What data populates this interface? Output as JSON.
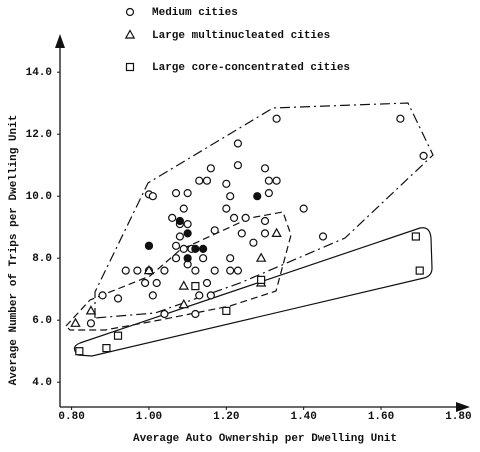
{
  "chart_data": {
    "type": "scatter",
    "x_label": "Average Auto Ownership per Dwelling Unit",
    "y_label": "Average Number of Trips per Dwelling Unit",
    "xlim": [
      0.77,
      1.83
    ],
    "ylim": [
      3.2,
      15.2
    ],
    "xticks": [
      {
        "value": 0.8,
        "label": "0.80"
      },
      {
        "value": 1.0,
        "label": "1.00"
      },
      {
        "value": 1.2,
        "label": "1.20"
      },
      {
        "value": 1.4,
        "label": "1.40"
      },
      {
        "value": 1.6,
        "label": "1.60"
      },
      {
        "value": 1.8,
        "label": "1.80"
      }
    ],
    "yticks": [
      {
        "value": 4,
        "label": "4.0"
      },
      {
        "value": 6,
        "label": "6.0"
      },
      {
        "value": 8,
        "label": "8.0"
      },
      {
        "value": 10,
        "label": "10.0"
      },
      {
        "value": 12,
        "label": "12.0"
      },
      {
        "value": 14,
        "label": "14.0"
      }
    ],
    "series": [
      {
        "name": "Medium cities",
        "marker": "circle",
        "color": "#111111",
        "x": [
          1.0,
          1.0,
          0.97,
          1.0,
          1.04,
          0.99,
          1.01,
          1.02,
          1.04,
          0.94,
          0.88,
          0.85,
          1.08,
          1.07,
          1.07,
          1.08,
          1.06,
          1.01,
          1.07,
          1.1,
          1.09,
          1.1,
          1.09,
          1.11,
          1.1,
          1.12,
          1.14,
          1.17,
          1.15,
          1.13,
          1.12,
          1.13,
          1.16,
          1.15,
          1.17,
          1.2,
          1.2,
          1.21,
          1.23,
          1.23,
          1.22,
          1.25,
          1.24,
          1.21,
          1.21,
          1.23,
          1.27,
          1.3,
          1.31,
          1.31,
          1.33,
          1.3,
          1.3,
          1.4,
          1.45,
          1.33,
          1.65,
          1.71,
          0.92,
          1.16
        ],
        "y": [
          10.06,
          8.4,
          7.6,
          7.6,
          7.6,
          7.2,
          6.8,
          7.2,
          6.2,
          7.6,
          6.8,
          5.9,
          8.7,
          8.4,
          8.0,
          9.1,
          9.3,
          10.0,
          10.1,
          10.1,
          9.6,
          9.1,
          8.3,
          8.3,
          7.8,
          7.6,
          8.0,
          7.6,
          7.2,
          6.8,
          6.2,
          10.5,
          10.9,
          10.5,
          8.9,
          9.6,
          10.4,
          10.0,
          11.7,
          11.0,
          9.3,
          9.3,
          8.8,
          8.0,
          7.6,
          7.6,
          8.5,
          10.9,
          10.5,
          10.1,
          10.5,
          9.2,
          8.8,
          9.6,
          8.7,
          12.5,
          12.5,
          11.3,
          6.7,
          6.8
        ]
      },
      {
        "marker": "circle",
        "filled": true,
        "color": "#111111",
        "x": [
          1.0,
          1.08,
          1.1,
          1.12,
          1.14,
          1.1,
          1.28
        ],
        "y": [
          8.4,
          9.2,
          8.8,
          8.3,
          8.3,
          8.0,
          10.0
        ]
      },
      {
        "name": "Large multinucleated cities",
        "marker": "triangle",
        "color": "#111111",
        "x": [
          0.81,
          0.85,
          1.0,
          1.09,
          1.09,
          1.29,
          1.29,
          1.33
        ],
        "y": [
          5.9,
          6.3,
          7.6,
          7.1,
          6.5,
          8.0,
          7.2,
          8.8
        ]
      },
      {
        "name": "Large core-concentrated cities",
        "marker": "square",
        "color": "#111111",
        "x": [
          0.82,
          0.89,
          0.92,
          1.12,
          1.2,
          1.29,
          1.69,
          1.7
        ],
        "y": [
          5.0,
          5.1,
          5.5,
          7.1,
          6.3,
          7.3,
          8.7,
          7.6
        ]
      }
    ]
  }
}
